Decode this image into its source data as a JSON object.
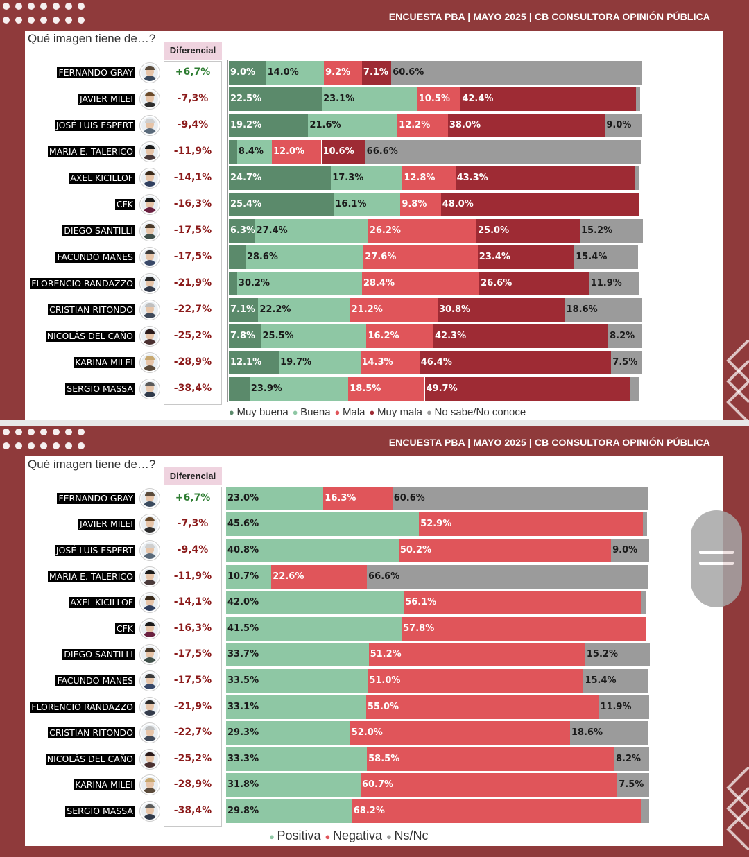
{
  "header": {
    "title": "ENCUESTA PBA | MAYO 2025 | CB CONSULTORA OPINIÓN PÚBLICA"
  },
  "question": "Qué imagen tiene de…?",
  "diff_header": "Diferencial",
  "colors": {
    "muy_buena": "#5b8a6b",
    "buena": "#8ec7a4",
    "mala": "#e0555a",
    "muy_mala": "#9e2b34",
    "nsnc": "#9b9b9b",
    "positive_diff": "#2e7d32",
    "negative_diff": "#8b1a1a",
    "background": "#8f3a3b"
  },
  "people": [
    {
      "name": "FERNANDO GRAY",
      "diff": "+6,7%",
      "avatar": "person-avatar-fernando-gray"
    },
    {
      "name": "JAVIER MILEI",
      "diff": "-7,3%",
      "avatar": "person-avatar-javier-milei"
    },
    {
      "name": "JOSÉ LUIS ESPERT",
      "diff": "-9,4%",
      "avatar": "person-avatar-jose-luis-espert"
    },
    {
      "name": "MARIA E. TALERICO",
      "diff": "-11,9%",
      "avatar": "person-avatar-maria-talerico"
    },
    {
      "name": "AXEL KICILLOF",
      "diff": "-14,1%",
      "avatar": "person-avatar-axel-kicillof"
    },
    {
      "name": "CFK",
      "diff": "-16,3%",
      "avatar": "person-avatar-cfk"
    },
    {
      "name": "DIEGO SANTILLI",
      "diff": "-17,5%",
      "avatar": "person-avatar-diego-santilli"
    },
    {
      "name": "FACUNDO MANES",
      "diff": "-17,5%",
      "avatar": "person-avatar-facundo-manes"
    },
    {
      "name": "FLORENCIO RANDAZZO",
      "diff": "-21,9%",
      "avatar": "person-avatar-florencio-randazzo"
    },
    {
      "name": "CRISTIAN RITONDO",
      "diff": "-22,7%",
      "avatar": "person-avatar-cristian-ritondo"
    },
    {
      "name": "NICOLÁS DEL CAÑO",
      "diff": "-25,2%",
      "avatar": "person-avatar-nicolas-del-cano"
    },
    {
      "name": "KARINA MILEI",
      "diff": "-28,9%",
      "avatar": "person-avatar-karina-milei"
    },
    {
      "name": "SERGIO MASSA",
      "diff": "-38,4%",
      "avatar": "person-avatar-sergio-massa"
    }
  ],
  "chart_data": [
    {
      "type": "bar",
      "orientation": "horizontal",
      "stacked": true,
      "title": "",
      "categories": [
        "FERNANDO GRAY",
        "JAVIER MILEI",
        "JOSÉ LUIS ESPERT",
        "MARIA E. TALERICO",
        "AXEL KICILLOF",
        "CFK",
        "DIEGO SANTILLI",
        "FACUNDO MANES",
        "FLORENCIO RANDAZZO",
        "CRISTIAN RITONDO",
        "NICOLÁS DEL CAÑO",
        "KARINA MILEI",
        "SERGIO MASSA"
      ],
      "series": [
        {
          "name": "Muy buena",
          "color": "#5b8a6b",
          "values": [
            9.0,
            22.5,
            19.2,
            2.0,
            24.7,
            25.4,
            6.3,
            4.0,
            2.0,
            7.1,
            7.8,
            12.1,
            5.0
          ],
          "labels": [
            "9.0%",
            "22.5%",
            "19.2%",
            "",
            "24.7%",
            "25.4%",
            "6.3%",
            "",
            "",
            "7.1%",
            "7.8%",
            "12.1%",
            ""
          ]
        },
        {
          "name": "Buena",
          "color": "#8ec7a4",
          "values": [
            14.0,
            23.1,
            21.6,
            8.4,
            17.3,
            16.1,
            27.4,
            28.6,
            30.2,
            22.2,
            25.5,
            19.7,
            23.9
          ],
          "labels": [
            "14.0%",
            "23.1%",
            "21.6%",
            "8.4%",
            "17.3%",
            "16.1%",
            "27.4%",
            "28.6%",
            "30.2%",
            "22.2%",
            "25.5%",
            "19.7%",
            "23.9%"
          ]
        },
        {
          "name": "Mala",
          "color": "#e0555a",
          "values": [
            9.2,
            10.5,
            12.2,
            12.0,
            12.8,
            9.8,
            26.2,
            27.6,
            28.4,
            21.2,
            16.2,
            14.3,
            18.5
          ],
          "labels": [
            "9.2%",
            "10.5%",
            "12.2%",
            "12.0%",
            "12.8%",
            "9.8%",
            "26.2%",
            "27.6%",
            "28.4%",
            "21.2%",
            "16.2%",
            "14.3%",
            "18.5%"
          ]
        },
        {
          "name": "Muy mala",
          "color": "#9e2b34",
          "values": [
            7.1,
            42.4,
            38.0,
            10.6,
            43.3,
            48.0,
            25.0,
            23.4,
            26.6,
            30.8,
            42.3,
            46.4,
            49.7
          ],
          "labels": [
            "7.1%",
            "42.4%",
            "38.0%",
            "10.6%",
            "43.3%",
            "48.0%",
            "25.0%",
            "23.4%",
            "26.6%",
            "30.8%",
            "42.3%",
            "46.4%",
            "49.7%"
          ]
        },
        {
          "name": "No sabe/No conoce",
          "color": "#9b9b9b",
          "values": [
            60.6,
            1.0,
            9.0,
            66.6,
            1.0,
            0.0,
            15.2,
            15.4,
            11.9,
            18.6,
            8.2,
            7.5,
            2.0
          ],
          "labels": [
            "60.6%",
            "",
            "9.0%",
            "66.6%",
            "",
            "",
            "15.2%",
            "15.4%",
            "11.9%",
            "18.6%",
            "8.2%",
            "7.5%",
            ""
          ]
        }
      ],
      "xlim": [
        0,
        100
      ],
      "legend": [
        "Muy buena",
        "Buena",
        "Mala",
        "Muy mala",
        "No sabe/No conoce"
      ],
      "legend_position": "bottom"
    },
    {
      "type": "bar",
      "orientation": "horizontal",
      "stacked": true,
      "title": "",
      "categories": [
        "FERNANDO GRAY",
        "JAVIER MILEI",
        "JOSÉ LUIS ESPERT",
        "MARIA E. TALERICO",
        "AXEL KICILLOF",
        "CFK",
        "DIEGO SANTILLI",
        "FACUNDO MANES",
        "FLORENCIO RANDAZZO",
        "CRISTIAN RITONDO",
        "NICOLÁS DEL CAÑO",
        "KARINA MILEI",
        "SERGIO MASSA"
      ],
      "series": [
        {
          "name": "Positiva",
          "color": "#8ec7a4",
          "values": [
            23.0,
            45.6,
            40.8,
            10.7,
            42.0,
            41.5,
            33.7,
            33.5,
            33.1,
            29.3,
            33.3,
            31.8,
            29.8
          ],
          "labels": [
            "23.0%",
            "45.6%",
            "40.8%",
            "10.7%",
            "42.0%",
            "41.5%",
            "33.7%",
            "33.5%",
            "33.1%",
            "29.3%",
            "33.3%",
            "31.8%",
            "29.8%"
          ]
        },
        {
          "name": "Negativa",
          "color": "#e0555a",
          "values": [
            16.3,
            52.9,
            50.2,
            22.6,
            56.1,
            57.8,
            51.2,
            51.0,
            55.0,
            52.0,
            58.5,
            60.7,
            68.2
          ],
          "labels": [
            "16.3%",
            "52.9%",
            "50.2%",
            "22.6%",
            "56.1%",
            "57.8%",
            "51.2%",
            "51.0%",
            "55.0%",
            "52.0%",
            "58.5%",
            "60.7%",
            "68.2%"
          ]
        },
        {
          "name": "Ns/Nc",
          "color": "#9b9b9b",
          "values": [
            60.6,
            1.0,
            9.0,
            66.6,
            1.0,
            0.0,
            15.2,
            15.4,
            11.9,
            18.6,
            8.2,
            7.5,
            2.0
          ],
          "labels": [
            "60.6%",
            "",
            "9.0%",
            "66.6%",
            "",
            "",
            "15.2%",
            "15.4%",
            "11.9%",
            "18.6%",
            "8.2%",
            "7.5%",
            ""
          ]
        }
      ],
      "xlim": [
        0,
        100
      ],
      "legend": [
        "Positiva",
        "Negativa",
        "Ns/Nc"
      ],
      "legend_position": "bottom"
    }
  ]
}
